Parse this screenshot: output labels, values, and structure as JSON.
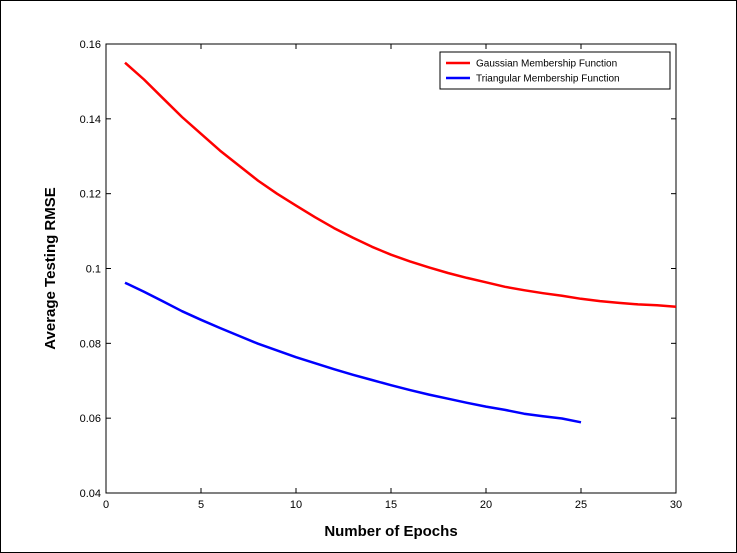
{
  "chart_data": {
    "type": "line",
    "xlabel": "Number of Epochs",
    "ylabel": "Average Testing RMSE",
    "xlim": [
      0,
      30
    ],
    "ylim": [
      0.04,
      0.16
    ],
    "xticks": [
      0,
      5,
      10,
      15,
      20,
      25,
      30
    ],
    "yticks": [
      0.04,
      0.06,
      0.08,
      0.1,
      0.12,
      0.14,
      0.16
    ],
    "ytick_labels": [
      "0.04",
      "0.06",
      "0.08",
      "0.1",
      "0.12",
      "0.14",
      "0.16"
    ],
    "grid": false,
    "legend_position": "top-right",
    "series": [
      {
        "name": "Gaussian Membership Function",
        "color": "#ff0000",
        "x": [
          1,
          2,
          3,
          4,
          5,
          6,
          7,
          8,
          9,
          10,
          11,
          12,
          13,
          14,
          15,
          16,
          17,
          18,
          19,
          20,
          21,
          22,
          23,
          24,
          25,
          26,
          27,
          28,
          29,
          30
        ],
        "y": [
          0.155,
          0.1505,
          0.1455,
          0.1405,
          0.136,
          0.1315,
          0.1275,
          0.1235,
          0.12,
          0.1168,
          0.1137,
          0.1108,
          0.1082,
          0.1058,
          0.1037,
          0.1019,
          0.1003,
          0.0988,
          0.0975,
          0.0963,
          0.0951,
          0.0942,
          0.0934,
          0.0927,
          0.0919,
          0.0913,
          0.0908,
          0.0904,
          0.0902,
          0.0898
        ]
      },
      {
        "name": "Triangular Membership Function",
        "color": "#0000ff",
        "x": [
          1,
          2,
          3,
          4,
          5,
          6,
          7,
          8,
          9,
          10,
          11,
          12,
          13,
          14,
          15,
          16,
          17,
          18,
          19,
          20,
          21,
          22,
          23,
          24,
          25
        ],
        "y": [
          0.0962,
          0.0938,
          0.0912,
          0.0886,
          0.0863,
          0.0841,
          0.082,
          0.0799,
          0.0781,
          0.0763,
          0.0747,
          0.0731,
          0.0716,
          0.0702,
          0.0688,
          0.0675,
          0.0663,
          0.0652,
          0.0641,
          0.0631,
          0.0622,
          0.0612,
          0.0605,
          0.0599,
          0.0589
        ]
      }
    ]
  }
}
